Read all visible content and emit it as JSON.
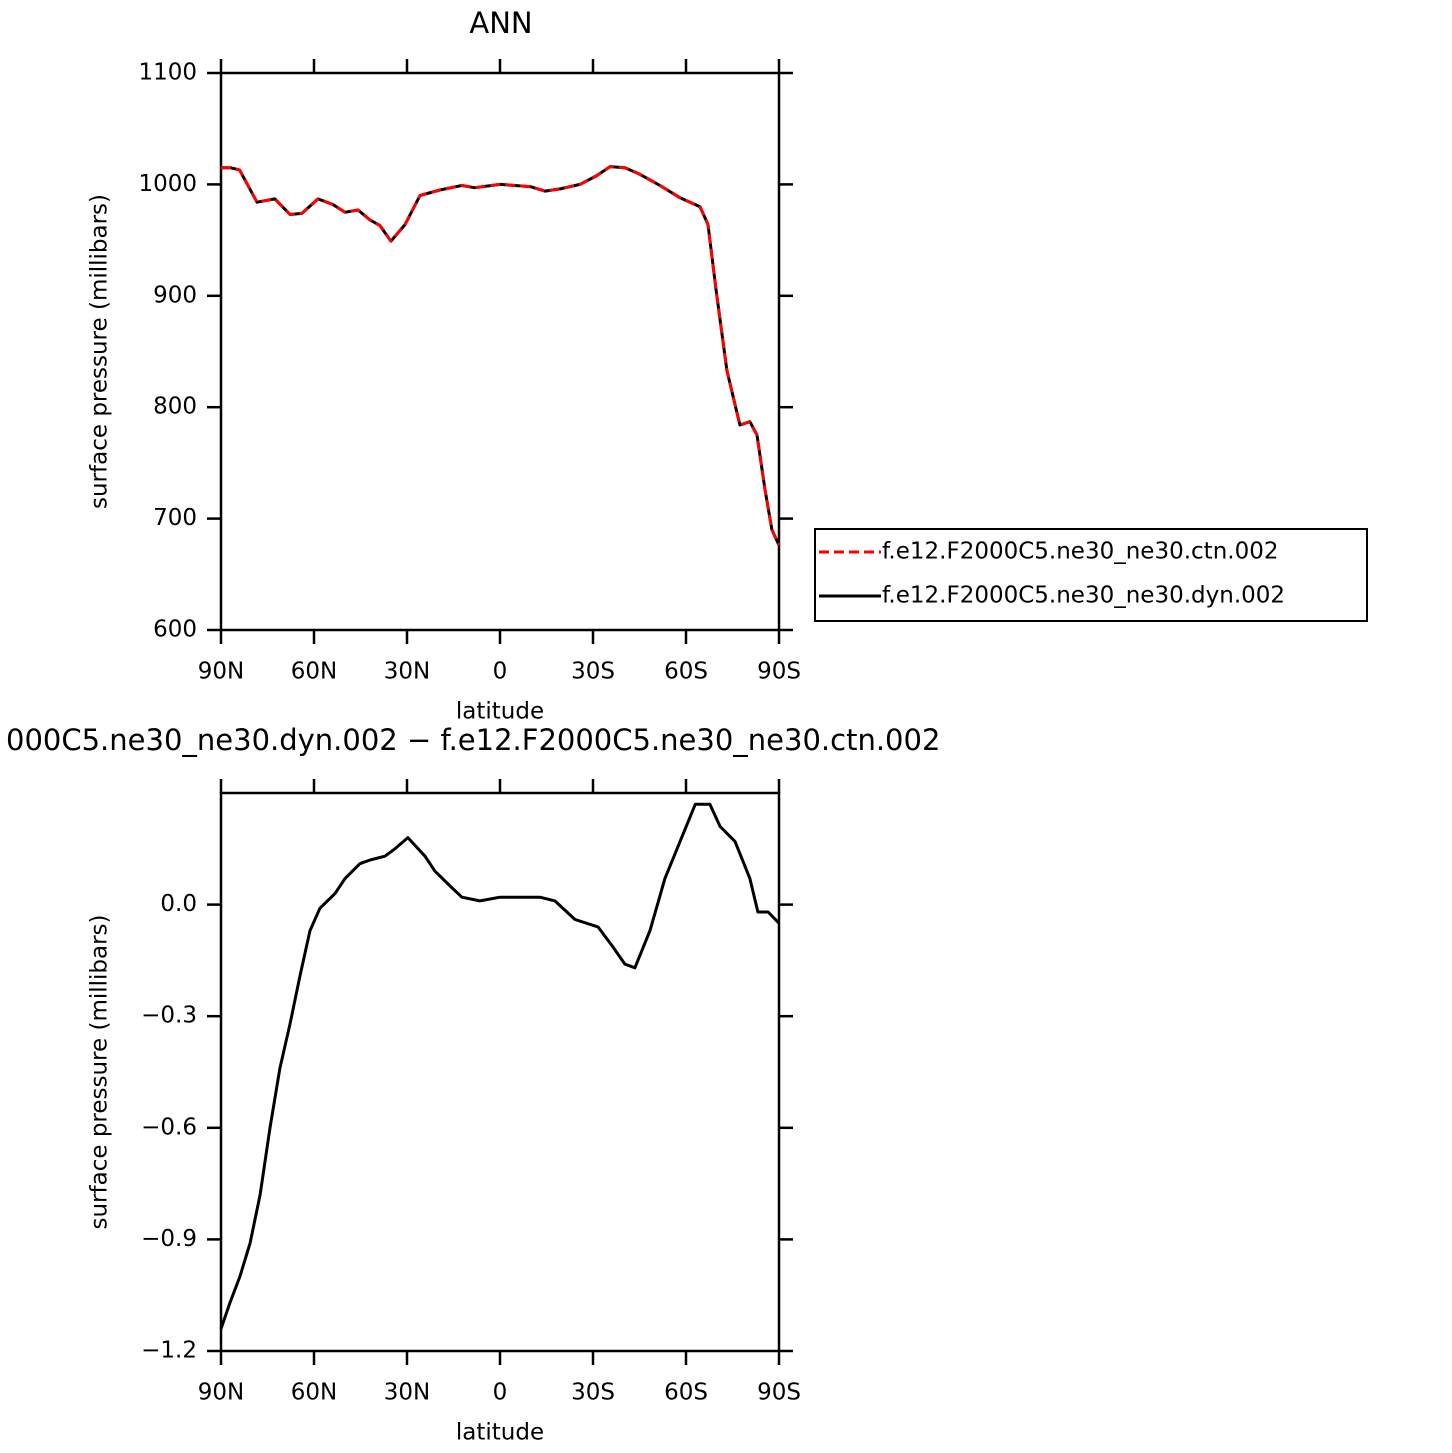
{
  "chart_data": [
    {
      "type": "line",
      "title": "ANN",
      "xlabel": "latitude",
      "ylabel": "surface pressure (millibars)",
      "xlim": [
        90,
        -90
      ],
      "ylim": [
        600,
        1100
      ],
      "xticks": [
        {
          "value": 90,
          "label": "90N"
        },
        {
          "value": 60,
          "label": "60N"
        },
        {
          "value": 30,
          "label": "30N"
        },
        0,
        {
          "value": -30,
          "label": "30S"
        },
        {
          "value": -60,
          "label": "60S"
        },
        {
          "value": -90,
          "label": "90S"
        }
      ],
      "yticks": [
        600,
        700,
        800,
        900,
        1000,
        1100
      ],
      "legend": "right",
      "x": [
        90,
        87,
        84,
        78.4,
        72.6,
        67.7,
        63.9,
        58.7,
        53.9,
        50,
        45.8,
        41.9,
        38.7,
        35.2,
        30.6,
        25.8,
        19.4,
        12.3,
        8.1,
        0,
        -9.7,
        -14.5,
        -19.4,
        -25.8,
        -31.3,
        -35.5,
        -40.3,
        -45.2,
        -51.6,
        -58.1,
        -64.5,
        -67.1,
        -69.7,
        -73.2,
        -77.4,
        -80.6,
        -82.9,
        -85.5,
        -87.7,
        -90
      ],
      "series": [
        {
          "name": "f.e12.F2000C5.ne30_ne30.dyn.002",
          "color": "#000000",
          "linestyle": "solid",
          "values": [
            1015,
            1015,
            1013,
            984,
            987,
            973,
            974,
            987,
            982,
            975,
            977,
            968,
            963,
            949,
            964,
            990,
            995,
            999,
            997,
            1000,
            998,
            994,
            996,
            1000,
            1008,
            1016,
            1015,
            1009,
            999,
            988,
            980,
            964,
            905,
            833,
            784,
            787,
            775,
            726,
            690,
            676
          ]
        },
        {
          "name": "f.e12.F2000C5.ne30_ne30.ctn.002",
          "color": "#ff0000",
          "linestyle": "dashed",
          "values": [
            1015,
            1015,
            1013,
            984,
            987,
            973,
            974,
            987,
            982,
            975,
            977,
            968,
            963,
            949,
            964,
            990,
            995,
            999,
            997,
            1000,
            998,
            994,
            996,
            1000,
            1008,
            1016,
            1015,
            1009,
            999,
            988,
            980,
            964,
            905,
            833,
            784,
            787,
            775,
            726,
            690,
            676
          ]
        }
      ]
    },
    {
      "type": "line",
      "title": "000C5.ne30_ne30.dyn.002 − f.e12.F2000C5.ne30_ne30.ctn.002",
      "xlabel": "latitude",
      "ylabel": "surface pressure (millibars)",
      "xlim": [
        90,
        -90
      ],
      "ylim": [
        -1.2,
        0.3
      ],
      "xticks": [
        {
          "value": 90,
          "label": "90N"
        },
        {
          "value": 60,
          "label": "60N"
        },
        {
          "value": 30,
          "label": "30N"
        },
        0,
        {
          "value": -30,
          "label": "30S"
        },
        {
          "value": -60,
          "label": "60S"
        },
        {
          "value": -90,
          "label": "90S"
        }
      ],
      "yticks": [
        {
          "value": -1.2,
          "label": "−1.2"
        },
        {
          "value": -0.9,
          "label": "−0.9"
        },
        {
          "value": -0.6,
          "label": "−0.6"
        },
        {
          "value": -0.3,
          "label": "−0.3"
        },
        {
          "value": 0,
          "label": "0.0"
        }
      ],
      "x": [
        90,
        87.1,
        83.9,
        80.6,
        77.4,
        74.2,
        71,
        67.7,
        64.5,
        61.3,
        58.1,
        53.2,
        50,
        45.2,
        41.9,
        37.1,
        33.9,
        29.7,
        24.2,
        21,
        16.1,
        12.3,
        6.5,
        0,
        -6.5,
        -12.9,
        -17.7,
        -24.2,
        -31.6,
        -36.1,
        -40.3,
        -43.5,
        -48.4,
        -53.2,
        -58.1,
        -63,
        -67.7,
        -71,
        -75.8,
        -80.6,
        -83.2,
        -86.5,
        -90
      ],
      "series": [
        {
          "color": "#000000",
          "linestyle": "solid",
          "values": [
            -1.14,
            -1.07,
            -1.0,
            -0.91,
            -0.78,
            -0.6,
            -0.44,
            -0.32,
            -0.19,
            -0.07,
            -0.01,
            0.03,
            0.07,
            0.11,
            0.12,
            0.13,
            0.15,
            0.18,
            0.13,
            0.09,
            0.05,
            0.02,
            0.01,
            0.02,
            0.02,
            0.02,
            0.01,
            -0.04,
            -0.06,
            -0.11,
            -0.16,
            -0.17,
            -0.07,
            0.07,
            0.17,
            0.27,
            0.27,
            0.21,
            0.17,
            0.07,
            -0.02,
            -0.02,
            -0.05
          ]
        }
      ]
    }
  ]
}
